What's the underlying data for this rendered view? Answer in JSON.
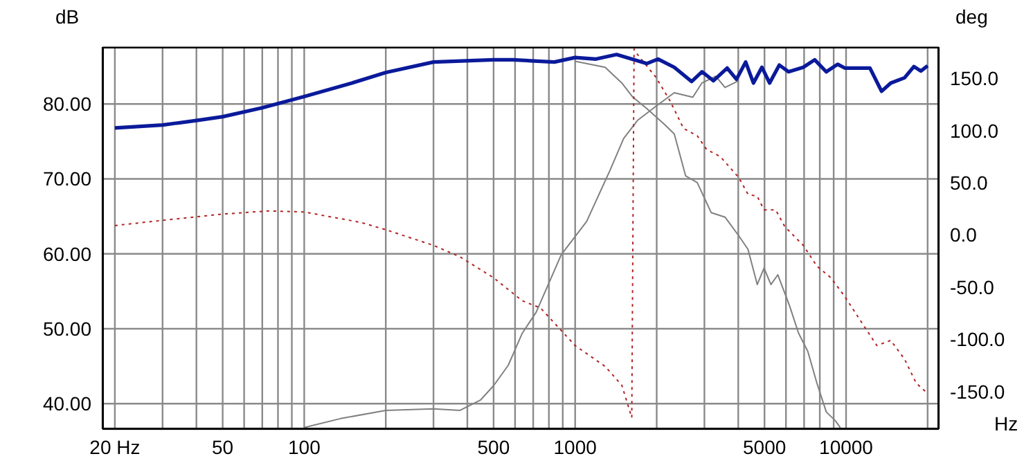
{
  "chart_data": {
    "type": "line",
    "xlabel": "Hz",
    "ylabel": "dB",
    "y2label": "deg",
    "log": "x",
    "grid": true,
    "marker": "none",
    "xlim": [
      18,
      22000
    ],
    "xticks": [
      {
        "value": 20,
        "label": "20 Hz"
      },
      {
        "value": 30,
        "label": null
      },
      {
        "value": 40,
        "label": null
      },
      50,
      {
        "value": 60,
        "label": null
      },
      {
        "value": 70,
        "label": null
      },
      {
        "value": 80,
        "label": null
      },
      {
        "value": 90,
        "label": null
      },
      100,
      {
        "value": 200,
        "label": null
      },
      {
        "value": 300,
        "label": null
      },
      {
        "value": 400,
        "label": null
      },
      500,
      {
        "value": 600,
        "label": null
      },
      {
        "value": 700,
        "label": null
      },
      {
        "value": 800,
        "label": null
      },
      {
        "value": 900,
        "label": null
      },
      1000,
      {
        "value": 2000,
        "label": null
      },
      {
        "value": 3000,
        "label": null
      },
      {
        "value": 4000,
        "label": null
      },
      5000,
      {
        "value": 6000,
        "label": null
      },
      {
        "value": 7000,
        "label": null
      },
      {
        "value": 8000,
        "label": null
      },
      {
        "value": 9000,
        "label": null
      },
      10000,
      {
        "value": 20000,
        "label": null
      }
    ],
    "ylim": [
      36.6,
      87.6
    ],
    "yticks": [
      {
        "value": 40,
        "label": "40.00"
      },
      {
        "value": 50,
        "label": "50.00"
      },
      {
        "value": 60,
        "label": "60.00"
      },
      {
        "value": 70,
        "label": "70.00"
      },
      {
        "value": 80,
        "label": "80.00"
      }
    ],
    "y2lim": [
      -186,
      180
    ],
    "y2ticks": [
      {
        "value": -150,
        "label": "-150.0"
      },
      {
        "value": -100,
        "label": "-100.0"
      },
      {
        "value": -50,
        "label": "-50.0"
      },
      {
        "value": 0,
        "label": "0.0"
      },
      {
        "value": 50,
        "label": "50.0"
      },
      {
        "value": 100,
        "label": "100.0"
      },
      {
        "value": 150,
        "label": "150.0"
      }
    ],
    "series": [
      {
        "color": "#808080",
        "line_style": "solid",
        "x": [
          100,
          136,
          200,
          300,
          376,
          448,
          500,
          566,
          638,
          718,
          889,
          1102,
          1343,
          1510,
          1698,
          1987,
          2322,
          2718,
          2936,
          3303,
          3574,
          4018
        ],
        "values": [
          36.8,
          38.0,
          39.1,
          39.3,
          39.1,
          40.5,
          42.4,
          45.1,
          49.4,
          52.2,
          59.9,
          64.3,
          71.1,
          75.4,
          77.8,
          79.7,
          81.5,
          80.9,
          82.8,
          83.7,
          82.2,
          83.1
        ]
      },
      {
        "color": "#808080",
        "line_style": "solid",
        "x": [
          1000,
          1291,
          1487,
          1634,
          1837,
          2147,
          2322,
          2558,
          2823,
          3178,
          3574,
          4018,
          4345,
          4700,
          4980,
          5280,
          5600,
          6180,
          6680,
          7220,
          7810,
          8450,
          9140,
          9520
        ],
        "values": [
          85.7,
          84.9,
          82.8,
          80.9,
          79.4,
          77.2,
          76.0,
          70.4,
          69.5,
          65.5,
          64.9,
          62.4,
          60.6,
          55.9,
          58.1,
          55.9,
          57.2,
          53.1,
          49.4,
          47.0,
          42.7,
          38.9,
          37.7,
          36.8
        ]
      },
      {
        "color": "#b22222",
        "line_style": "dotted",
        "axis": "y2",
        "x": [
          20,
          30,
          50,
          74,
          100,
          162,
          200,
          300,
          376,
          500,
          638,
          745,
          1000,
          1291,
          1487,
          1618,
          1650,
          1698,
          1987,
          2234,
          2513,
          2823,
          3055,
          3436,
          4018,
          4345,
          4700,
          4980,
          5500,
          5940,
          6950,
          7810,
          8790,
          9890,
          11560,
          13000,
          14620,
          16440,
          18150,
          19640
        ],
        "values": [
          9,
          14,
          20,
          23,
          22,
          12,
          5,
          -10,
          -21,
          -41,
          -63,
          -70,
          -106,
          -126,
          -144,
          -175,
          178,
          173,
          151,
          129,
          102,
          95,
          82,
          75,
          55,
          39,
          37,
          24,
          24,
          8,
          -10,
          -30,
          -41,
          -59,
          -86,
          -106,
          -101,
          -119,
          -142,
          -150
        ]
      },
      {
        "color": "#0a1a9a",
        "line_style": "solid",
        "x": [
          20,
          30,
          40,
          50,
          70,
          100,
          150,
          200,
          300,
          500,
          589,
          838,
          1000,
          1194,
          1422,
          1837,
          2023,
          2322,
          2690,
          2940,
          3240,
          3640,
          3940,
          4260,
          4550,
          4890,
          5220,
          5670,
          6130,
          6950,
          7660,
          8450,
          9310,
          9890,
          12250,
          13520,
          14620,
          16440,
          17800,
          18880,
          20000
        ],
        "values": [
          76.8,
          77.2,
          77.8,
          78.3,
          79.5,
          81.0,
          82.8,
          84.2,
          85.6,
          85.9,
          85.9,
          85.6,
          86.2,
          86.0,
          86.6,
          85.4,
          86.0,
          84.9,
          83.0,
          84.3,
          83.1,
          84.8,
          83.3,
          85.6,
          82.8,
          84.9,
          82.8,
          85.2,
          84.3,
          84.9,
          85.9,
          84.3,
          85.3,
          84.8,
          84.8,
          81.7,
          82.8,
          83.5,
          85.0,
          84.4,
          85.1
        ]
      }
    ]
  }
}
